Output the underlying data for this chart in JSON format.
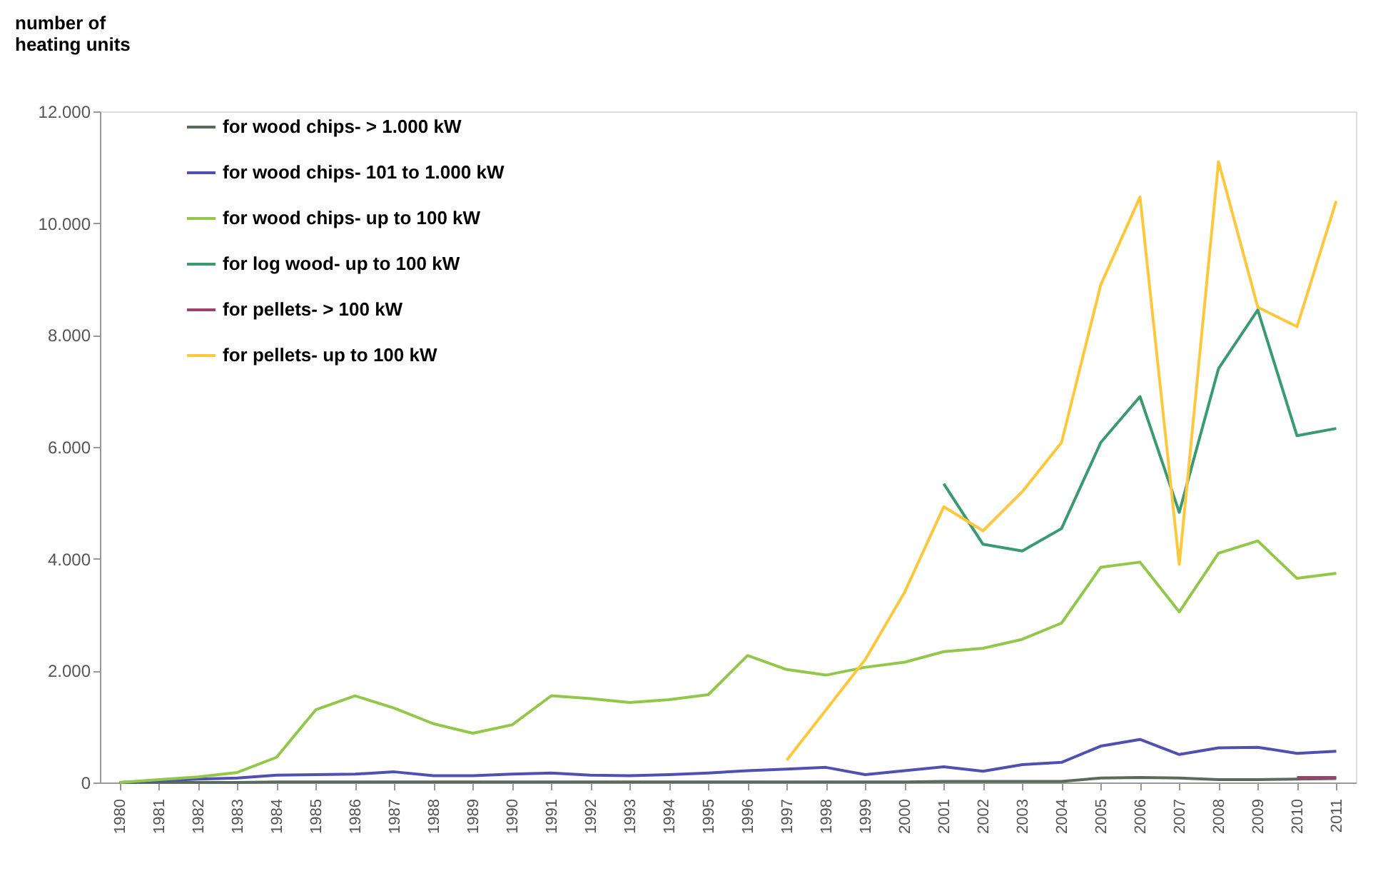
{
  "chart_data": {
    "type": "line",
    "ylabel": "number of heating units",
    "categories": [
      "1980",
      "1981",
      "1982",
      "1983",
      "1984",
      "1985",
      "1986",
      "1987",
      "1988",
      "1989",
      "1990",
      "1991",
      "1992",
      "1993",
      "1994",
      "1995",
      "1996",
      "1997",
      "1998",
      "1999",
      "2000",
      "2001",
      "2002",
      "2003",
      "2004",
      "2005",
      "2006",
      "2007",
      "2008",
      "2009",
      "2010",
      "2011"
    ],
    "series": [
      {
        "name": "for wood chips- > 1.000 kW",
        "color": "#5a6b5e",
        "values": [
          0,
          0,
          0,
          0,
          10,
          10,
          10,
          10,
          10,
          10,
          10,
          10,
          10,
          10,
          10,
          10,
          10,
          10,
          10,
          10,
          10,
          20,
          20,
          20,
          20,
          80,
          90,
          80,
          50,
          50,
          60,
          70
        ]
      },
      {
        "name": "for wood chips- 101 to 1.000 kW",
        "color": "#5050b0",
        "values": [
          0,
          30,
          60,
          80,
          130,
          140,
          150,
          190,
          120,
          120,
          150,
          170,
          130,
          120,
          140,
          170,
          210,
          240,
          270,
          140,
          210,
          280,
          200,
          320,
          360,
          650,
          770,
          500,
          620,
          630,
          520,
          560
        ]
      },
      {
        "name": "for wood chips- up to 100 kW",
        "color": "#92c84a",
        "values": [
          0,
          50,
          100,
          180,
          450,
          1300,
          1550,
          1330,
          1050,
          880,
          1030,
          1550,
          1500,
          1430,
          1480,
          1570,
          2270,
          2020,
          1920,
          2060,
          2150,
          2340,
          2400,
          2560,
          2850,
          3850,
          3940,
          3050,
          4100,
          4320,
          3650,
          3740
        ]
      },
      {
        "name": "for log wood- up to 100 kW",
        "color": "#3a9a70",
        "values": [
          null,
          null,
          null,
          null,
          null,
          null,
          null,
          null,
          null,
          null,
          null,
          null,
          null,
          null,
          null,
          null,
          null,
          null,
          null,
          null,
          null,
          5340,
          4260,
          4140,
          4540,
          6080,
          6900,
          4830,
          7400,
          8450,
          6200,
          6330
        ]
      },
      {
        "name": "for pellets- > 100 kW",
        "color": "#a0406a",
        "values": [
          null,
          null,
          null,
          null,
          null,
          null,
          null,
          null,
          null,
          null,
          null,
          null,
          null,
          null,
          null,
          null,
          null,
          null,
          null,
          null,
          null,
          null,
          null,
          null,
          null,
          null,
          null,
          null,
          null,
          null,
          90,
          90
        ]
      },
      {
        "name": "for pellets- up to 100 kW",
        "color": "#ffc83c",
        "values": [
          null,
          null,
          null,
          null,
          null,
          null,
          null,
          null,
          null,
          null,
          null,
          null,
          null,
          null,
          null,
          null,
          null,
          400,
          1300,
          2200,
          3400,
          4930,
          4500,
          5200,
          6080,
          8900,
          10470,
          3900,
          11100,
          8500,
          8150,
          10400
        ]
      }
    ],
    "ylim": [
      0,
      12000
    ],
    "yticks": [
      {
        "value": 0,
        "label": "0"
      },
      {
        "value": 2000,
        "label": "2.000"
      },
      {
        "value": 4000,
        "label": "4.000"
      },
      {
        "value": 6000,
        "label": "6.000"
      },
      {
        "value": 8000,
        "label": "8.000"
      },
      {
        "value": 10000,
        "label": "10.000"
      },
      {
        "value": 12000,
        "label": "12.000"
      }
    ],
    "grid": false,
    "legend": "top left",
    "marker": "none",
    "line_style": "solid"
  }
}
